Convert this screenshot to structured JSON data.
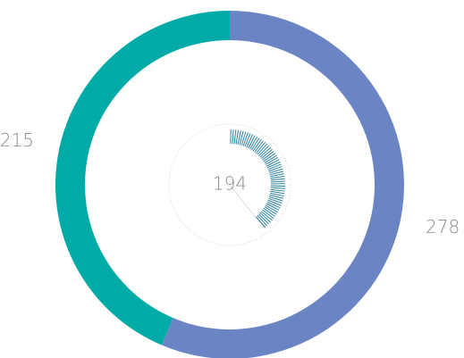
{
  "chart_data": {
    "type": "donut",
    "values": [
      278,
      215
    ],
    "colors": [
      "#6b84c4",
      "#00aaa6"
    ],
    "center_value": 194,
    "center_color": "#2a7f9e"
  }
}
